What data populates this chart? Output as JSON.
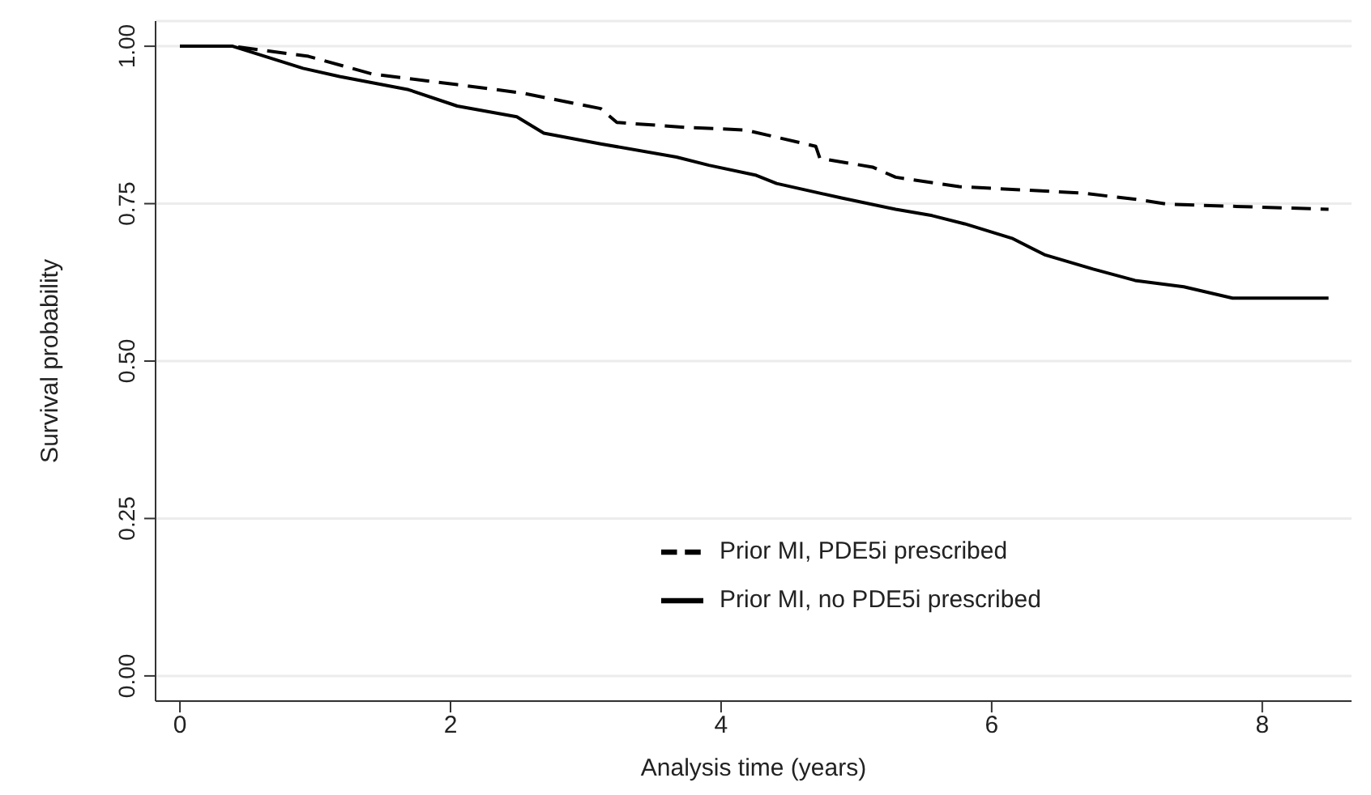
{
  "chart_data": {
    "type": "line",
    "xlabel": "Analysis time (years)",
    "ylabel": "Survival probability",
    "xlim": [
      -0.18,
      8.66
    ],
    "xticks": [
      0,
      2,
      4,
      6,
      8
    ],
    "ylim": [
      -0.04,
      1.04
    ],
    "yticks": [
      {
        "value": 0,
        "label": "0.00"
      },
      {
        "value": 0.25,
        "label": "0.25"
      },
      {
        "value": 0.5,
        "label": "0.50"
      },
      {
        "value": 0.75,
        "label": "0.75"
      },
      {
        "value": 1,
        "label": "1.00"
      }
    ],
    "grid": "y",
    "legend": "bottom right",
    "marker": "none",
    "series": [
      {
        "name": "Prior MI, no PDE5i prescribed",
        "color": "#000000",
        "line_style": "solid",
        "x": [
          0,
          0.39,
          0.91,
          1.18,
          1.69,
          2.05,
          2.49,
          2.69,
          3.11,
          3.67,
          3.91,
          4.26,
          4.41,
          4.89,
          5.29,
          5.56,
          5.8,
          6.15,
          6.39,
          6.75,
          7.06,
          7.42,
          7.78,
          8.49
        ],
        "values": [
          1,
          1,
          0.965,
          0.952,
          0.931,
          0.905,
          0.888,
          0.862,
          0.845,
          0.824,
          0.811,
          0.795,
          0.782,
          0.759,
          0.741,
          0.731,
          0.718,
          0.695,
          0.669,
          0.646,
          0.628,
          0.618,
          0.6,
          0.6
        ]
      },
      {
        "name": "Prior MI, PDE5i prescribed",
        "color": "#000000",
        "line_style": "dashed",
        "x": [
          0,
          0.39,
          0.95,
          1.42,
          2.05,
          2.52,
          3.11,
          3.23,
          3.75,
          4.18,
          4.7,
          4.73,
          5.12,
          5.29,
          5.76,
          6.66,
          7.1,
          7.3,
          8.49
        ],
        "values": [
          1,
          1,
          0.984,
          0.956,
          0.939,
          0.926,
          0.901,
          0.879,
          0.871,
          0.867,
          0.841,
          0.822,
          0.808,
          0.792,
          0.777,
          0.767,
          0.756,
          0.749,
          0.741
        ]
      }
    ]
  }
}
